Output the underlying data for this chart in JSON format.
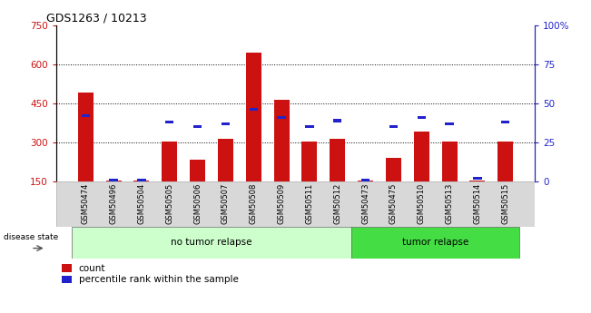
{
  "title": "GDS1263 / 10213",
  "samples": [
    "GSM50474",
    "GSM50496",
    "GSM50504",
    "GSM50505",
    "GSM50506",
    "GSM50507",
    "GSM50508",
    "GSM50509",
    "GSM50511",
    "GSM50512",
    "GSM50473",
    "GSM50475",
    "GSM50510",
    "GSM50513",
    "GSM50514",
    "GSM50515"
  ],
  "count": [
    490,
    155,
    155,
    305,
    235,
    315,
    645,
    465,
    305,
    315,
    155,
    240,
    340,
    305,
    155,
    305
  ],
  "percentile": [
    42,
    1,
    1,
    38,
    35,
    37,
    46,
    41,
    35,
    39,
    1,
    35,
    41,
    37,
    2,
    38
  ],
  "group1_label": "no tumor relapse",
  "group2_label": "tumor relapse",
  "group1_count": 10,
  "group2_count": 6,
  "ylim_left": [
    150,
    750
  ],
  "ylim_right": [
    0,
    100
  ],
  "yticks_left": [
    150,
    300,
    450,
    600,
    750
  ],
  "yticks_right": [
    0,
    25,
    50,
    75,
    100
  ],
  "bar_color_red": "#cc1111",
  "bar_color_blue": "#2222cc",
  "legend_count": "count",
  "legend_pct": "percentile rank within the sample",
  "group1_bg": "#ccffcc",
  "group2_bg": "#44dd44",
  "label_area_bg": "#d8d8d8",
  "disease_state_label": "disease state",
  "bar_width": 0.55
}
